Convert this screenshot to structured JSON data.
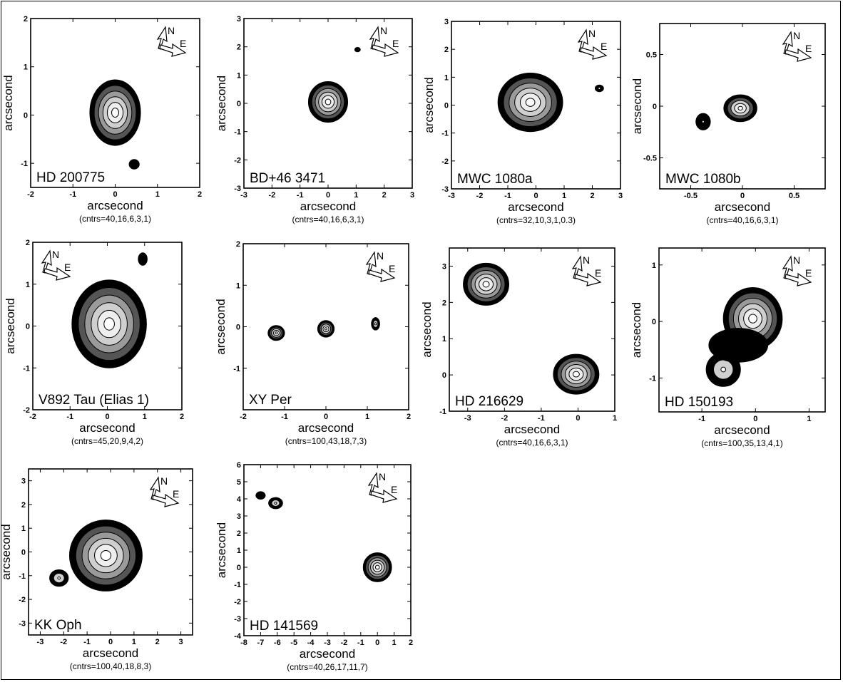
{
  "palette": {
    "levels": [
      "#000000",
      "#555555",
      "#9a9a9a",
      "#cfcfcf",
      "#eeeeee",
      "#ffffff"
    ],
    "line": "#000000"
  },
  "compass_labels": {
    "north": "N",
    "east": "E"
  },
  "chart_data": [
    {
      "type": "contour",
      "name": "HD 200775",
      "contours": "(cntrs=40,16,6,3,1)",
      "xlabel": "arcsecond",
      "ylabel": "arcsecond",
      "xlim": [
        -2,
        2
      ],
      "ylim": [
        -1.5,
        2
      ],
      "xticks": [
        "-2",
        "-1",
        "0",
        "1",
        "2"
      ],
      "xtick_values": [
        -2,
        -1,
        0,
        1,
        2
      ],
      "yticks": [
        "-1",
        "0",
        "1",
        "2"
      ],
      "ytick_values": [
        -1,
        0,
        1,
        2
      ],
      "sources": [
        {
          "x": 0.0,
          "y": 0.05,
          "rx": 0.6,
          "ry": 0.68,
          "levels": 6
        },
        {
          "x": 0.45,
          "y": -1.02,
          "rx": 0.12,
          "ry": 0.1,
          "levels": 1
        }
      ]
    },
    {
      "type": "contour",
      "name": "BD+46 3471",
      "contours": "(cntrs=40,16,6,3,1)",
      "xlabel": "arcsecond",
      "ylabel": "arcsecond",
      "xlim": [
        -3,
        3
      ],
      "ylim": [
        -3,
        3
      ],
      "xticks": [
        "-3",
        "-2",
        "-1",
        "0",
        "1",
        "2",
        "3"
      ],
      "xtick_values": [
        -3,
        -2,
        -1,
        0,
        1,
        2,
        3
      ],
      "yticks": [
        "-3",
        "-2",
        "-1",
        "0",
        "1",
        "2",
        "3"
      ],
      "ytick_values": [
        -3,
        -2,
        -1,
        0,
        1,
        2,
        3
      ],
      "sources": [
        {
          "x": 0.0,
          "y": 0.05,
          "rx": 0.7,
          "ry": 0.72,
          "levels": 6
        },
        {
          "x": 1.05,
          "y": 1.9,
          "rx": 0.1,
          "ry": 0.08,
          "levels": 1
        }
      ]
    },
    {
      "type": "contour",
      "name": "MWC 1080a",
      "contours": "(cntrs=32,10,3,1,0.3)",
      "xlabel": "arcsecond",
      "ylabel": "arcsecond",
      "xlim": [
        -3,
        3
      ],
      "ylim": [
        -3,
        3
      ],
      "xticks": [
        "-3",
        "-2",
        "-1",
        "0",
        "1",
        "2",
        "3"
      ],
      "xtick_values": [
        -3,
        -2,
        -1,
        0,
        1,
        2,
        3
      ],
      "yticks": [
        "-3",
        "-2",
        "-1",
        "0",
        "1",
        "2",
        "3"
      ],
      "ytick_values": [
        -3,
        -2,
        -1,
        0,
        1,
        2,
        3
      ],
      "sources": [
        {
          "x": -0.2,
          "y": 0.1,
          "rx": 1.15,
          "ry": 1.05,
          "levels": 6
        },
        {
          "x": 2.25,
          "y": 0.6,
          "rx": 0.15,
          "ry": 0.12,
          "levels": 2
        }
      ]
    },
    {
      "type": "contour",
      "name": "MWC 1080b",
      "contours": "(cntrs=40,16,6,3,1)",
      "xlabel": "arcsecond",
      "ylabel": "arcsecond",
      "xlim": [
        -0.8,
        0.8
      ],
      "ylim": [
        -0.8,
        0.8
      ],
      "xticks": [
        "-0.5",
        "0",
        "0.5"
      ],
      "xtick_values": [
        -0.5,
        0,
        0.5
      ],
      "yticks": [
        "-0.5",
        "0",
        "0.5"
      ],
      "ytick_values": [
        -0.5,
        0,
        0.5
      ],
      "sources": [
        {
          "x": -0.02,
          "y": -0.02,
          "rx": 0.16,
          "ry": 0.13,
          "levels": 5
        },
        {
          "x": -0.38,
          "y": -0.15,
          "rx": 0.07,
          "ry": 0.08,
          "levels": 2
        }
      ]
    },
    {
      "type": "contour",
      "name": "V892 Tau (Elias 1)",
      "contours": "(cntrs=45,20,9,4,2)",
      "xlabel": "arcsecond",
      "ylabel": "arcsecond",
      "xlim": [
        -2,
        2
      ],
      "ylim": [
        -2,
        2
      ],
      "xticks": [
        "-2",
        "-1",
        "0",
        "1",
        "2"
      ],
      "xtick_values": [
        -2,
        -1,
        0,
        1,
        2
      ],
      "yticks": [
        "-2",
        "-1",
        "0",
        "1",
        "2"
      ],
      "ytick_values": [
        -2,
        -1,
        0,
        1,
        2
      ],
      "sources": [
        {
          "x": 0.05,
          "y": 0.05,
          "rx": 1.0,
          "ry": 1.05,
          "levels": 6
        },
        {
          "x": 0.95,
          "y": 1.6,
          "rx": 0.12,
          "ry": 0.15,
          "levels": 1
        }
      ]
    },
    {
      "type": "contour",
      "name": "XY Per",
      "contours": "(cntrs=100,43,18,7,3)",
      "xlabel": "arcsecond",
      "ylabel": "arcsecond",
      "xlim": [
        -2,
        2
      ],
      "ylim": [
        -2,
        2
      ],
      "xticks": [
        "-2",
        "-1",
        "0",
        "1",
        "2"
      ],
      "xtick_values": [
        -2,
        -1,
        0,
        1,
        2
      ],
      "yticks": [
        "-1",
        "0",
        "1",
        "2"
      ],
      "ytick_values": [
        -1,
        0,
        1,
        2
      ],
      "sources": [
        {
          "x": -1.2,
          "y": -0.15,
          "rx": 0.2,
          "ry": 0.18,
          "levels": 5
        },
        {
          "x": 0.0,
          "y": -0.05,
          "rx": 0.2,
          "ry": 0.2,
          "levels": 5
        },
        {
          "x": 1.2,
          "y": 0.07,
          "rx": 0.1,
          "ry": 0.15,
          "levels": 3
        }
      ]
    },
    {
      "type": "contour",
      "name": "HD 216629",
      "contours": "(cntrs=40,16,6,3,1)",
      "xlabel": "arcsecond",
      "ylabel": "arcsecond",
      "xlim": [
        -3.5,
        1
      ],
      "ylim": [
        -1,
        3.5
      ],
      "xticks": [
        "-3",
        "-2",
        "-1",
        "0",
        "1"
      ],
      "xtick_values": [
        -3,
        -2,
        -1,
        0,
        1
      ],
      "yticks": [
        "-1",
        "0",
        "1",
        "2",
        "3"
      ],
      "ytick_values": [
        -1,
        0,
        1,
        2,
        3
      ],
      "sources": [
        {
          "x": -2.5,
          "y": 2.5,
          "rx": 0.62,
          "ry": 0.58,
          "levels": 6
        },
        {
          "x": -0.05,
          "y": 0.02,
          "rx": 0.62,
          "ry": 0.55,
          "levels": 6
        }
      ]
    },
    {
      "type": "contour",
      "name": "HD 150193",
      "contours": "(cntrs=100,35,13,4,1)",
      "xlabel": "arcsecond",
      "ylabel": "arcsecond",
      "xlim": [
        -1.8,
        1.3
      ],
      "ylim": [
        -1.6,
        1.3
      ],
      "xticks": [
        "-1",
        "0",
        "1"
      ],
      "xtick_values": [
        -1,
        0,
        1
      ],
      "yticks": [
        "-1",
        "0",
        "1"
      ],
      "ytick_values": [
        -1,
        0,
        1
      ],
      "sources": [
        {
          "x": -0.05,
          "y": 0.05,
          "rx": 0.55,
          "ry": 0.55,
          "levels": 6
        },
        {
          "x": -0.6,
          "y": -0.85,
          "rx": 0.32,
          "ry": 0.3,
          "levels": 3
        },
        {
          "x": -0.32,
          "y": -0.42,
          "rx": 0.55,
          "ry": 0.3,
          "levels": 1
        }
      ]
    },
    {
      "type": "contour",
      "name": "KK Oph",
      "contours": "(cntrs=100,40,18,8,3)",
      "xlabel": "arcsecond",
      "ylabel": "arcsecond",
      "xlim": [
        -3.5,
        3.5
      ],
      "ylim": [
        -3.5,
        3.5
      ],
      "xticks": [
        "-3",
        "-2",
        "-1",
        "0",
        "1",
        "2",
        "3"
      ],
      "xtick_values": [
        -3,
        -2,
        -1,
        0,
        1,
        2,
        3
      ],
      "yticks": [
        "-3",
        "-2",
        "-1",
        "0",
        "1",
        "2",
        "3"
      ],
      "ytick_values": [
        -3,
        -2,
        -1,
        0,
        1,
        2,
        3
      ],
      "sources": [
        {
          "x": -0.2,
          "y": -0.15,
          "rx": 1.55,
          "ry": 1.5,
          "levels": 6
        },
        {
          "x": -2.2,
          "y": -1.1,
          "rx": 0.4,
          "ry": 0.35,
          "levels": 3
        }
      ]
    },
    {
      "type": "contour",
      "name": "HD 141569",
      "contours": "(cntrs=40,26,17,11,7)",
      "xlabel": "arcsecond",
      "ylabel": "arcsecond",
      "xlim": [
        -8,
        2
      ],
      "ylim": [
        -4,
        6
      ],
      "xticks": [
        "-8",
        "-7",
        "-6",
        "-5",
        "-4",
        "-3",
        "-2",
        "-1",
        "0",
        "1",
        "2"
      ],
      "xtick_values": [
        -8,
        -7,
        -6,
        -5,
        -4,
        -3,
        -2,
        -1,
        0,
        1,
        2
      ],
      "yticks": [
        "-4",
        "-3",
        "-2",
        "-1",
        "0",
        "1",
        "2",
        "3",
        "4",
        "5",
        "6"
      ],
      "ytick_values": [
        -4,
        -3,
        -2,
        -1,
        0,
        1,
        2,
        3,
        4,
        5,
        6
      ],
      "sources": [
        {
          "x": 0.0,
          "y": 0.0,
          "rx": 0.85,
          "ry": 0.85,
          "levels": 6
        },
        {
          "x": -6.1,
          "y": 3.75,
          "rx": 0.42,
          "ry": 0.33,
          "levels": 3
        },
        {
          "x": -7.0,
          "y": 4.2,
          "rx": 0.28,
          "ry": 0.22,
          "levels": 1
        }
      ]
    }
  ]
}
